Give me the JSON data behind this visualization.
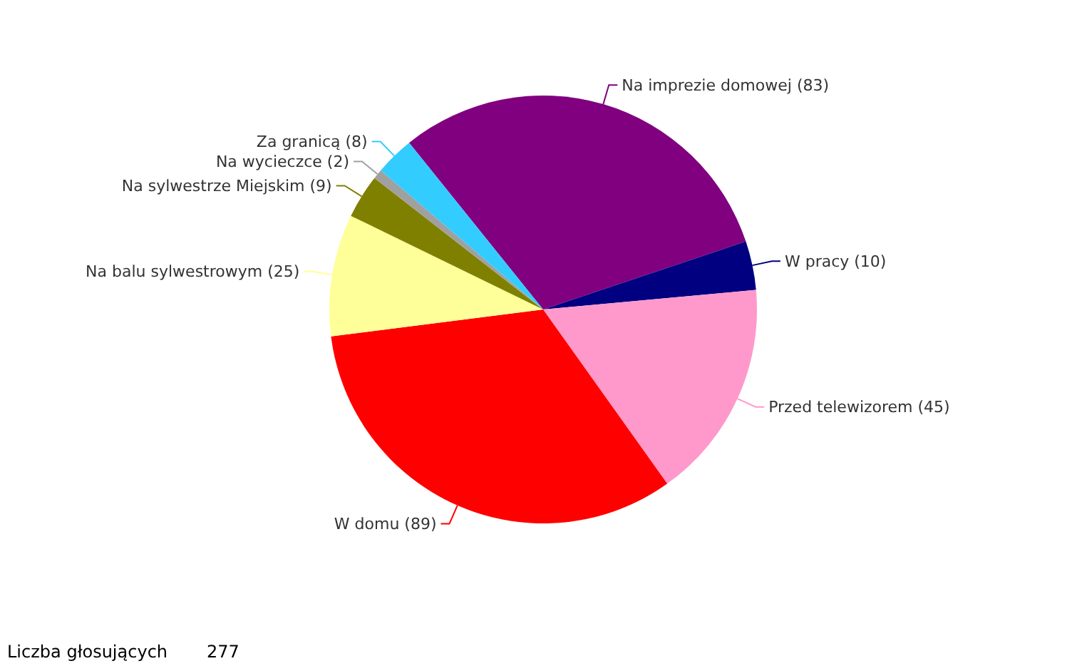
{
  "chart_data": {
    "type": "pie",
    "categories": [
      "Na imprezie domowej",
      "W pracy",
      "Przed telewizorem",
      "W domu",
      "Na balu sylwestrowym",
      "Na sylwestrze Miejskim",
      "Na wycieczce",
      "Za granicą"
    ],
    "values": [
      83,
      10,
      45,
      89,
      25,
      9,
      2,
      8
    ],
    "colors": [
      "#800080",
      "#000080",
      "#ff99cc",
      "#ff0000",
      "#ffff99",
      "#808000",
      "#a0a0a0",
      "#33ccff"
    ],
    "value_labels": [
      "(83)",
      "(10)",
      "(45)",
      "(89)",
      "(25)",
      "(9)",
      "(2)",
      "(8)"
    ],
    "annotations": [
      "Liczba głosujących",
      "277"
    ]
  }
}
